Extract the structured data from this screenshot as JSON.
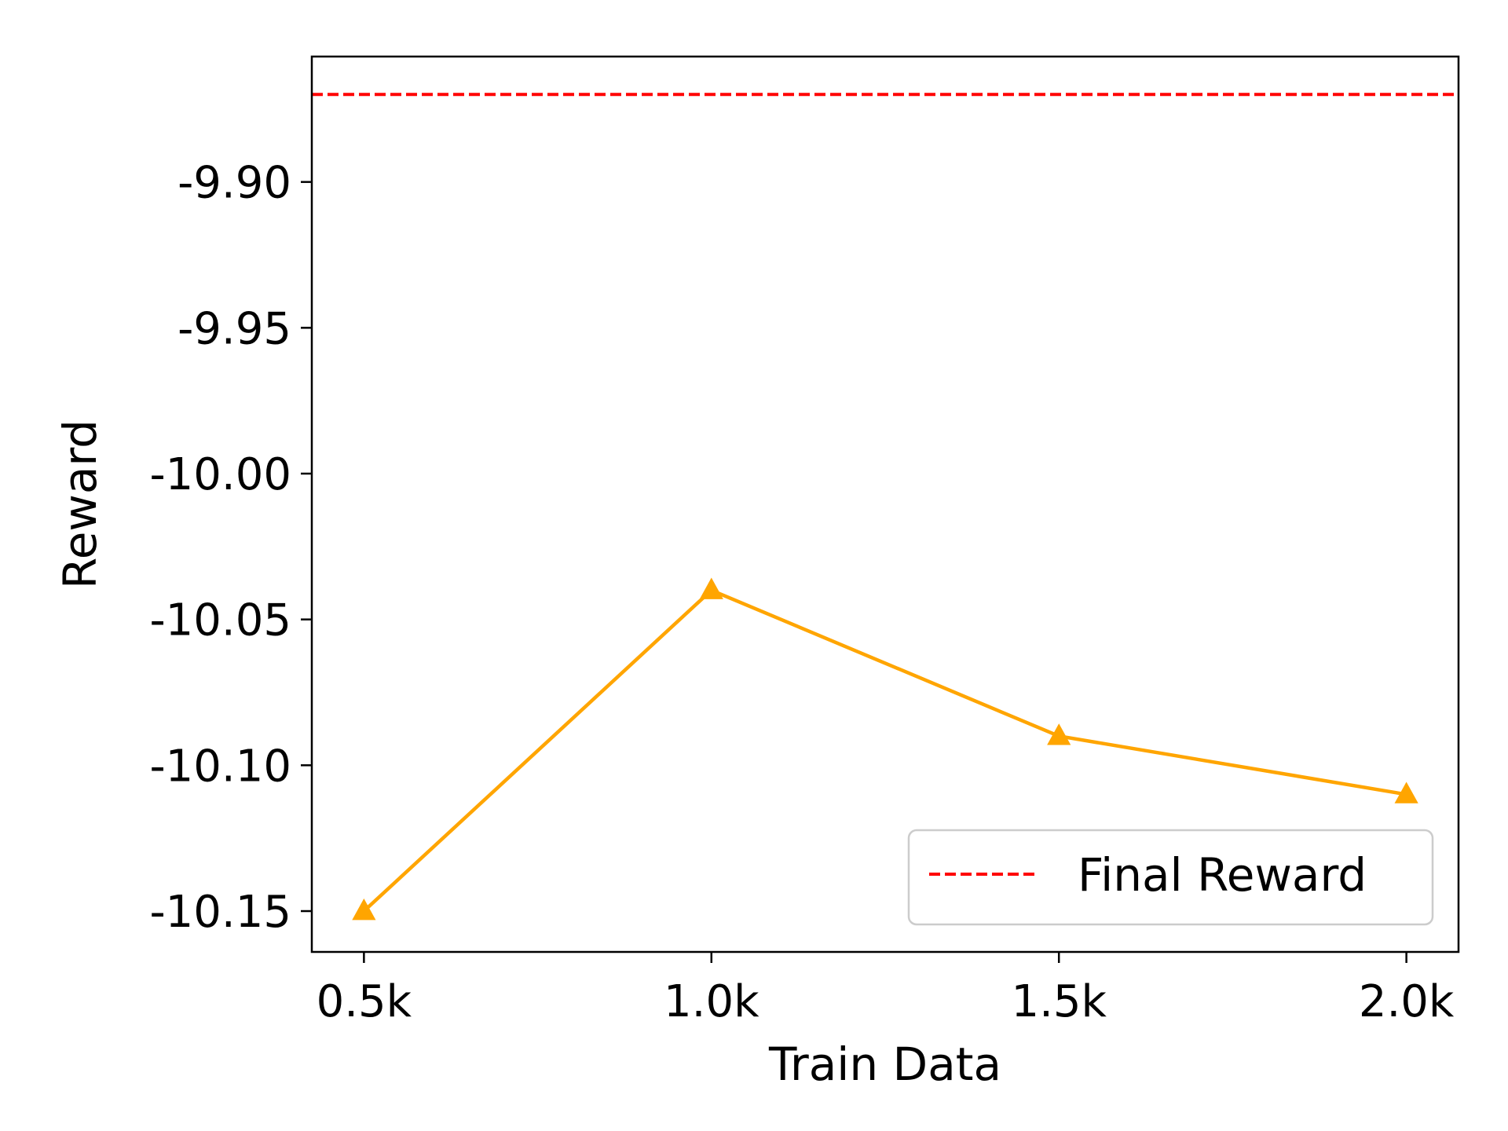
{
  "chart_data": {
    "type": "line",
    "title": "",
    "xlabel": "Train Data",
    "ylabel": "Reward",
    "categories": [
      "0.5k",
      "1.0k",
      "1.5k",
      "2.0k"
    ],
    "x": [
      0.5,
      1.0,
      1.5,
      2.0
    ],
    "xlim": [
      0.425,
      2.075
    ],
    "ylim": [
      -10.164,
      -9.857
    ],
    "yticks": [
      -9.9,
      -9.95,
      -10.0,
      -10.05,
      -10.1,
      -10.15
    ],
    "ytick_labels": [
      "-9.90",
      "-9.95",
      "-10.00",
      "-10.05",
      "-10.10",
      "-10.15"
    ],
    "series": [
      {
        "values": [
          -10.15,
          -10.04,
          -10.09,
          -10.11
        ],
        "color": "#FFA500",
        "marker": "triangle-up"
      }
    ],
    "reference_lines": [
      {
        "name": "Final Reward",
        "value": -9.87,
        "color": "#FF0000",
        "style": "dashed"
      }
    ],
    "legend": {
      "position": "lower-right",
      "entries": [
        "Final Reward"
      ]
    },
    "grid": false
  }
}
